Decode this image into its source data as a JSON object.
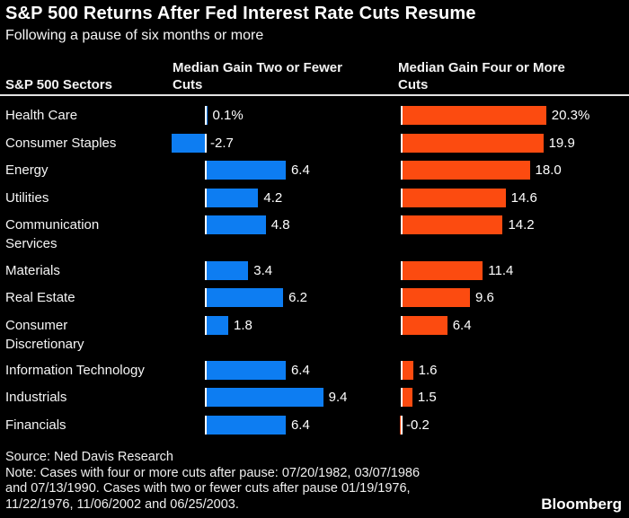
{
  "title": "S&P 500 Returns After Fed Interest Rate Cuts Resume",
  "subtitle": "Following a pause of six months or more",
  "columns": {
    "sectors": "S&P 500 Sectors",
    "two_or_fewer": "Median Gain Two or Fewer Cuts",
    "four_or_more": "Median Gain Four or More Cuts"
  },
  "colors": {
    "background": "#000000",
    "text": "#ffffff",
    "blue": "#0d7df2",
    "orange": "#fc4b10",
    "divider": "#e3e3e3",
    "baseline_tick": "#ffffff"
  },
  "footer": {
    "lines": [
      "Source: Ned Davis Research",
      "Note: Cases with four or more cuts after pause: 07/20/1982, 03/07/1986",
      "and 07/13/1990. Cases with two or fewer cuts after pause 01/19/1976,",
      "11/22/1976, 11/06/2002 and 06/25/2003."
    ]
  },
  "brand": "Bloomberg",
  "chart_data": {
    "type": "bar",
    "orientation": "horizontal",
    "categories": [
      "Health Care",
      "Consumer Staples",
      "Energy",
      "Utilities",
      "Communication\nServices",
      "Materials",
      "Real Estate",
      "Consumer\nDiscretionary",
      "Information Technology",
      "Industrials",
      "Financials"
    ],
    "series": [
      {
        "name": "Median Gain Two or Fewer Cuts",
        "color": "#0d7df2",
        "values": [
          0.1,
          -2.7,
          6.4,
          4.2,
          4.8,
          3.4,
          6.2,
          1.8,
          6.4,
          9.4,
          6.4
        ],
        "labels": [
          "0.1%",
          "-2.7",
          "6.4",
          "4.2",
          "4.8",
          "3.4",
          "6.2",
          "1.8",
          "6.4",
          "9.4",
          "6.4"
        ]
      },
      {
        "name": "Median Gain Four or More Cuts",
        "color": "#fc4b10",
        "values": [
          20.3,
          19.9,
          18.0,
          14.6,
          14.2,
          11.4,
          9.6,
          6.4,
          1.6,
          1.5,
          -0.2
        ],
        "labels": [
          "20.3%",
          "19.9",
          "18.0",
          "14.6",
          "14.2",
          "11.4",
          "9.6",
          "6.4",
          "1.6",
          "1.5",
          "-0.2"
        ]
      }
    ],
    "xlim_two_or_fewer": [
      -3.2,
      10.5
    ],
    "xlim_four_or_more": [
      -0.5,
      31
    ],
    "grid": false,
    "legend_position": "column-headers",
    "title": "S&P 500 Returns After Fed Interest Rate Cuts Resume",
    "subtitle": "Following a pause of six months or more"
  }
}
